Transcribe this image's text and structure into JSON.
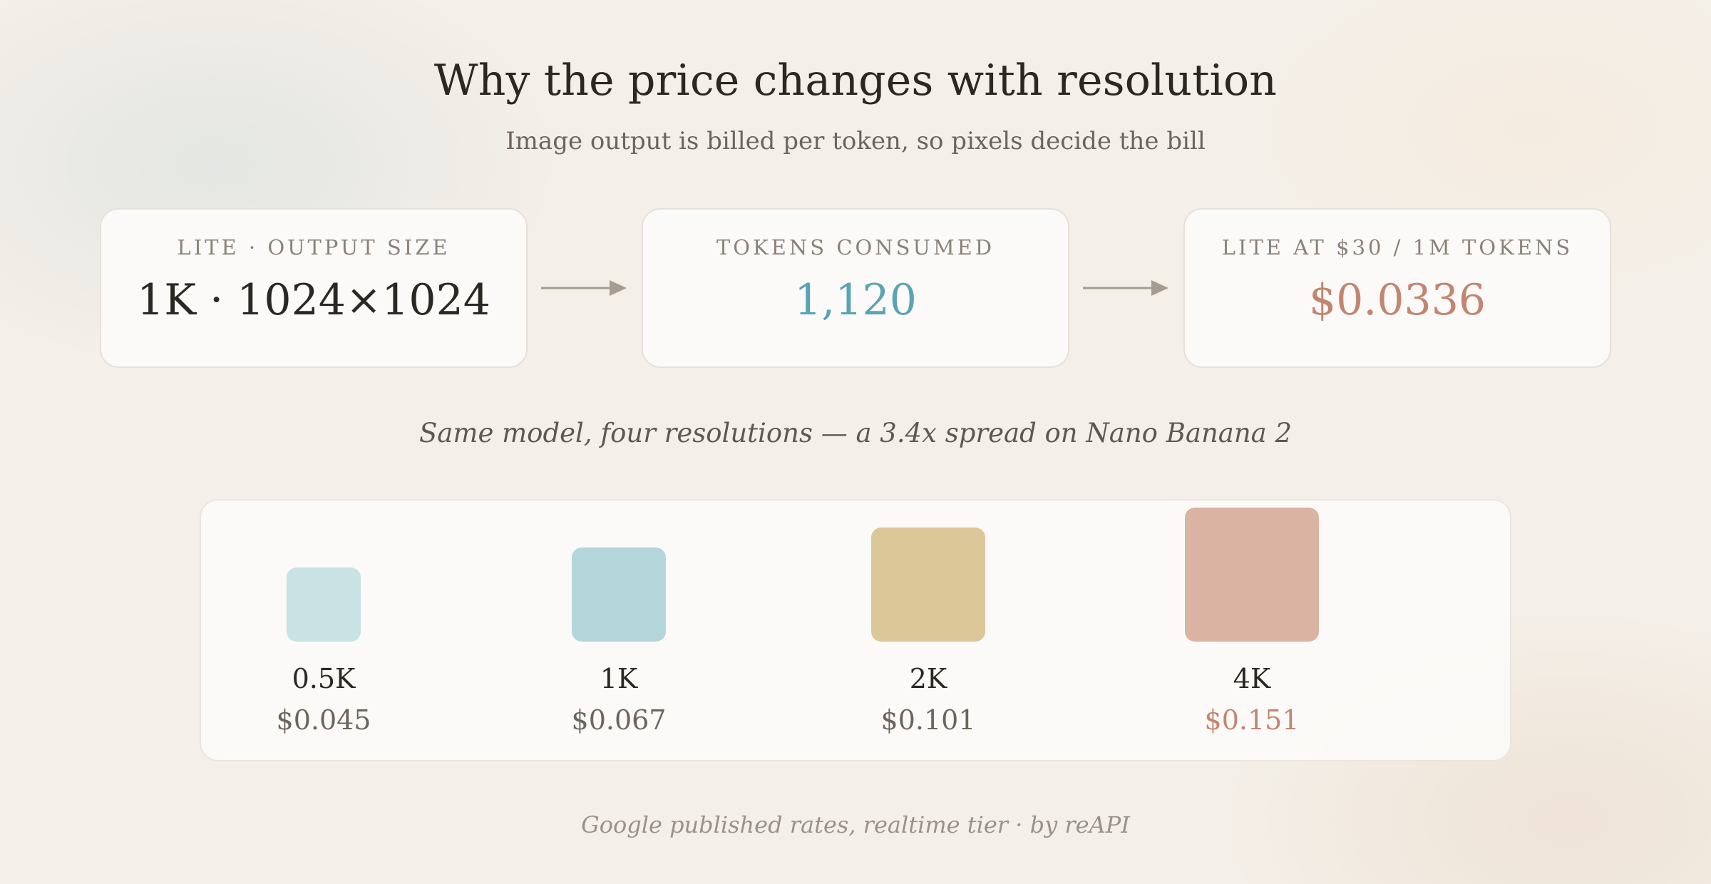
{
  "header": {
    "title": "Why the price changes with resolution",
    "subtitle": "Image output is billed per token, so pixels decide the bill"
  },
  "flow": {
    "cards": [
      {
        "label": "LITE · OUTPUT SIZE",
        "value": "1K · 1024×1024"
      },
      {
        "label": "TOKENS CONSUMED",
        "value": "1,120"
      },
      {
        "label": "LITE AT $30 / 1M TOKENS",
        "value": "$0.0336"
      }
    ]
  },
  "caption": "Same model, four resolutions — a 3.4x spread on Nano Banana 2",
  "resolutions": [
    {
      "label": "0.5K",
      "price": "$0.045",
      "color": "#c9e2e4"
    },
    {
      "label": "1K",
      "price": "$0.067",
      "color": "#b3d6db"
    },
    {
      "label": "2K",
      "price": "$0.101",
      "color": "#dbc797"
    },
    {
      "label": "4K",
      "price": "$0.151",
      "color": "#dbb3a2"
    }
  ],
  "colors": {
    "teal": "#5aa4b4",
    "terracotta": "#c28670",
    "arrow": "#a59c92"
  },
  "footer": "Google published rates, realtime tier · by reAPI"
}
